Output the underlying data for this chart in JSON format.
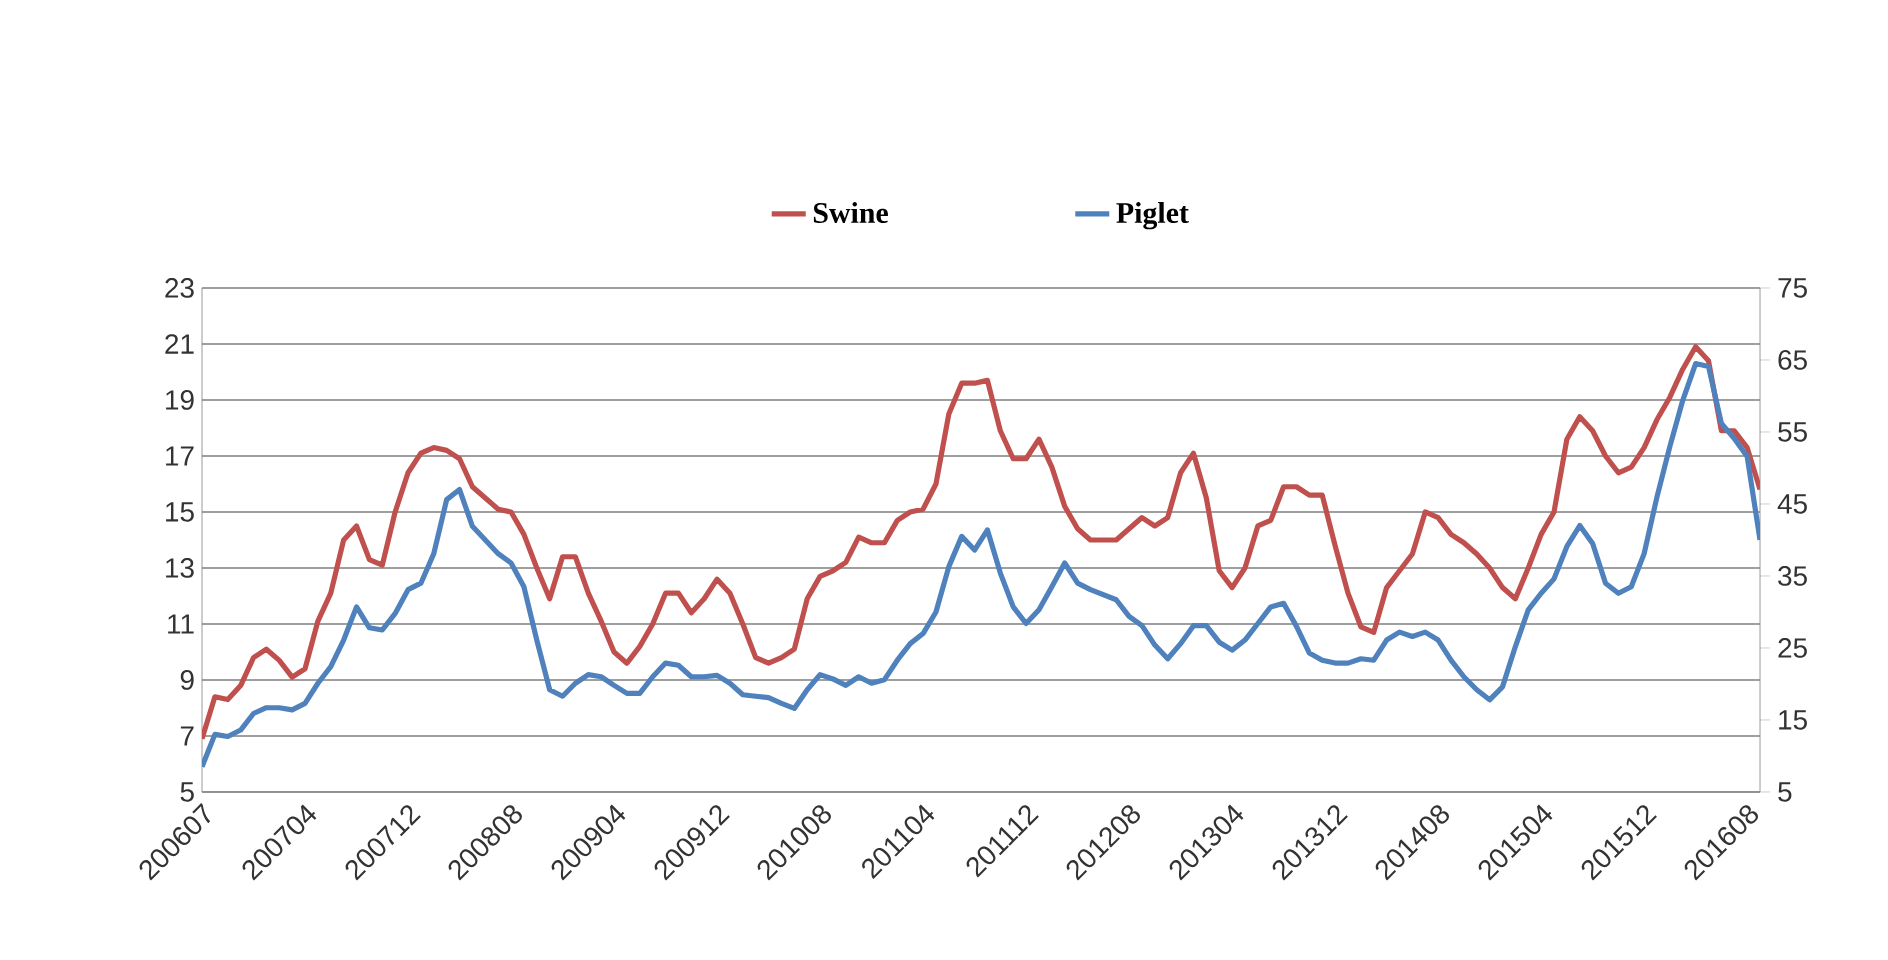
{
  "chart_data": {
    "type": "line",
    "categories": [
      "200607",
      null,
      null,
      null,
      null,
      null,
      null,
      null,
      "200704",
      null,
      null,
      null,
      null,
      null,
      null,
      null,
      "200712",
      null,
      null,
      null,
      null,
      null,
      null,
      null,
      "200808",
      null,
      null,
      null,
      null,
      null,
      null,
      null,
      "200904",
      null,
      null,
      null,
      null,
      null,
      null,
      null,
      "200912",
      null,
      null,
      null,
      null,
      null,
      null,
      null,
      "201008",
      null,
      null,
      null,
      null,
      null,
      null,
      null,
      "201104",
      null,
      null,
      null,
      null,
      null,
      null,
      null,
      "201112",
      null,
      null,
      null,
      null,
      null,
      null,
      null,
      "201208",
      null,
      null,
      null,
      null,
      null,
      null,
      null,
      "201304",
      null,
      null,
      null,
      null,
      null,
      null,
      null,
      "201312",
      null,
      null,
      null,
      null,
      null,
      null,
      null,
      "201408",
      null,
      null,
      null,
      null,
      null,
      null,
      null,
      "201504",
      null,
      null,
      null,
      null,
      null,
      null,
      null,
      "201512",
      null,
      null,
      null,
      null,
      null,
      null,
      null,
      "201608",
      null
    ],
    "series": [
      {
        "name": "Swine",
        "color": "#c0504d",
        "values": [
          6.9,
          8.4,
          8.3,
          8.8,
          9.8,
          10.1,
          9.7,
          9.1,
          9.4,
          11.1,
          12.1,
          14.0,
          14.5,
          13.3,
          13.1,
          15.0,
          16.4,
          17.1,
          17.3,
          17.2,
          16.9,
          15.9,
          15.5,
          15.1,
          15.0,
          14.2,
          13.0,
          11.9,
          13.4,
          13.4,
          12.1,
          11.1,
          10.0,
          9.6,
          10.2,
          11.0,
          12.1,
          12.1,
          11.4,
          11.9,
          12.6,
          12.1,
          11.0,
          9.8,
          9.6,
          9.8,
          10.1,
          11.9,
          12.7,
          12.9,
          13.2,
          14.1,
          13.9,
          13.9,
          14.7,
          15.0,
          15.1,
          16.0,
          18.5,
          19.6,
          19.6,
          19.7,
          17.9,
          16.9,
          16.9,
          17.6,
          16.6,
          15.2,
          14.4,
          14.0,
          14.0,
          14.0,
          14.4,
          14.8,
          14.5,
          14.8,
          16.4,
          17.1,
          15.5,
          12.9,
          12.3,
          13.0,
          14.5,
          14.7,
          15.9,
          15.9,
          15.6,
          15.6,
          13.8,
          12.1,
          10.9,
          10.7,
          12.3,
          12.9,
          13.5,
          15.0,
          14.8,
          14.2,
          13.9,
          13.5,
          13.0,
          12.3,
          11.9,
          13.0,
          14.2,
          15.0,
          17.6,
          18.4,
          17.9,
          17.0,
          16.4,
          16.6,
          17.3,
          18.3,
          19.1,
          20.1,
          20.9,
          20.4,
          17.9,
          17.9,
          17.3,
          15.8
        ]
      },
      {
        "name": "Piglet",
        "color": "#4f81bd",
        "axis": "y2",
        "values": [
          8.5,
          13.0,
          12.7,
          13.6,
          15.9,
          16.7,
          16.7,
          16.4,
          17.3,
          20.1,
          22.4,
          26.1,
          30.7,
          27.8,
          27.5,
          29.8,
          33.1,
          34.0,
          38.1,
          45.6,
          47.0,
          41.9,
          40.0,
          38.1,
          36.8,
          33.5,
          26.1,
          19.2,
          18.3,
          20.1,
          21.3,
          21.0,
          19.8,
          18.7,
          18.7,
          21.0,
          22.9,
          22.6,
          21.0,
          21.0,
          21.2,
          20.1,
          18.5,
          18.3,
          18.1,
          17.3,
          16.6,
          19.2,
          21.3,
          20.7,
          19.8,
          21.0,
          20.1,
          20.6,
          23.3,
          25.6,
          27.0,
          30.0,
          36.3,
          40.5,
          38.6,
          41.4,
          35.4,
          30.7,
          28.4,
          30.3,
          33.5,
          36.8,
          34.0,
          33.1,
          32.4,
          31.7,
          29.4,
          28.1,
          25.4,
          23.5,
          25.6,
          28.1,
          28.1,
          25.8,
          24.7,
          26.1,
          28.4,
          30.7,
          31.2,
          28.0,
          24.3,
          23.3,
          22.9,
          22.9,
          23.5,
          23.3,
          26.1,
          27.2,
          26.6,
          27.2,
          26.1,
          23.3,
          21.0,
          19.2,
          17.8,
          19.6,
          25.2,
          30.3,
          32.6,
          34.6,
          39.1,
          42.0,
          39.5,
          34.0,
          32.6,
          33.5,
          38.1,
          46.0,
          53.0,
          59.4,
          64.5,
          64.1,
          56.2,
          54.1,
          51.6,
          40.0
        ]
      }
    ],
    "ylim": [
      5,
      23
    ],
    "yticks": [
      5,
      7,
      9,
      11,
      13,
      15,
      17,
      19,
      21,
      23
    ],
    "y2lim": [
      5,
      75
    ],
    "y2ticks": [
      5,
      15,
      25,
      35,
      45,
      55,
      65,
      75
    ],
    "grid": "y",
    "legend": "top",
    "marker": "none",
    "line_style": "solid"
  }
}
